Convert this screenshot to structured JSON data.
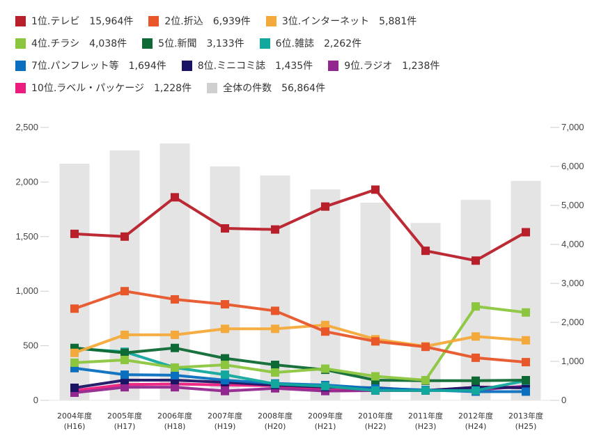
{
  "legend": [
    {
      "label": "1位.テレビ",
      "count": "15,964件",
      "color": "#B81F2A"
    },
    {
      "label": "2位.折込",
      "count": "6,939件",
      "color": "#E8562A"
    },
    {
      "label": "3位.インターネット",
      "count": "5,881件",
      "color": "#F4AA3A"
    },
    {
      "label": "4位.チラシ",
      "count": "4,038件",
      "color": "#8CC63F"
    },
    {
      "label": "5位.新聞",
      "count": "3,133件",
      "color": "#0E6A35"
    },
    {
      "label": "6位.雑誌",
      "count": "2,262件",
      "color": "#13A89E"
    },
    {
      "label": "7位.パンフレット等",
      "count": "1,694件",
      "color": "#0A6FBF"
    },
    {
      "label": "8位.ミニコミ誌",
      "count": "1,435件",
      "color": "#1B1464"
    },
    {
      "label": "9位.ラジオ",
      "count": "1,238件",
      "color": "#92278F"
    },
    {
      "label": "10位.ラベル・パッケージ",
      "count": "1,228件",
      "color": "#EC1C7E"
    },
    {
      "label": "全体の件数",
      "count": "56,864件",
      "color": "#CFCFCF"
    }
  ],
  "chart_data": {
    "type": "bar+line",
    "title": "",
    "categories": [
      "2004年度",
      "2005年度",
      "2006年度",
      "2007年度",
      "2008年度",
      "2009年度",
      "2010年度",
      "2011年度",
      "2012年度",
      "2013年度"
    ],
    "category_sublabels": [
      "(H16)",
      "(H17)",
      "(H18)",
      "(H19)",
      "(H20)",
      "(H21)",
      "(H22)",
      "(H23)",
      "(H24)",
      "(H25)"
    ],
    "left_axis": {
      "ylim": [
        0,
        2500
      ],
      "ticks": [
        "0",
        "500",
        "1,000",
        "1,500",
        "2,000",
        "2,500"
      ],
      "tick_values": [
        0,
        500,
        1000,
        1500,
        2000,
        2500
      ]
    },
    "right_axis": {
      "ylim": [
        0,
        7000
      ],
      "ticks": [
        "0",
        "1,000",
        "2,000",
        "3,000",
        "4,000",
        "5,000",
        "6,000",
        "7,000"
      ],
      "tick_values": [
        0,
        1000,
        2000,
        3000,
        4000,
        5000,
        6000,
        7000
      ]
    },
    "bars": {
      "name": "全体の件数",
      "axis": "right",
      "color": "#E4E4E4",
      "values": [
        6070,
        6410,
        6590,
        6000,
        5770,
        5410,
        5070,
        4550,
        5140,
        5630
      ]
    },
    "series": [
      {
        "name": "1位.テレビ",
        "color": "#B81F2A",
        "values": [
          1525,
          1500,
          1860,
          1575,
          1565,
          1775,
          1930,
          1370,
          1280,
          1540
        ]
      },
      {
        "name": "2位.折込",
        "color": "#E8562A",
        "values": [
          840,
          1000,
          925,
          880,
          820,
          630,
          540,
          490,
          390,
          350
        ]
      },
      {
        "name": "3位.インターネット",
        "color": "#F4AA3A",
        "values": [
          435,
          600,
          600,
          655,
          655,
          690,
          560,
          495,
          585,
          550
        ]
      },
      {
        "name": "4位.チラシ",
        "color": "#8CC63F",
        "values": [
          345,
          370,
          300,
          325,
          255,
          290,
          220,
          185,
          860,
          805
        ]
      },
      {
        "name": "5位.新聞",
        "color": "#0E6A35",
        "values": [
          480,
          435,
          480,
          385,
          325,
          280,
          185,
          180,
          180,
          185
        ]
      },
      {
        "name": "6位.雑誌",
        "color": "#13A89E",
        "values": [
          475,
          445,
          300,
          235,
          150,
          130,
          90,
          90,
          90,
          180
        ]
      },
      {
        "name": "7位.パンフレット等",
        "color": "#0A6FBF",
        "values": [
          295,
          235,
          230,
          185,
          155,
          140,
          110,
          95,
          80,
          80
        ]
      },
      {
        "name": "8位.ミニコミ誌",
        "color": "#1B1464",
        "values": [
          115,
          185,
          185,
          165,
          140,
          120,
          115,
          90,
          120,
          115
        ]
      },
      {
        "name": "9位.ラジオ",
        "color": "#92278F",
        "values": [
          70,
          120,
          120,
          85,
          110,
          85,
          90,
          90,
          95,
          130
        ]
      },
      {
        "name": "10位.ラベル・パッケージ",
        "color": "#EC1C7E",
        "values": [
          90,
          145,
          150,
          140,
          135,
          95,
          90,
          90,
          120,
          120
        ]
      }
    ],
    "grid": false,
    "legend_position": "top"
  }
}
